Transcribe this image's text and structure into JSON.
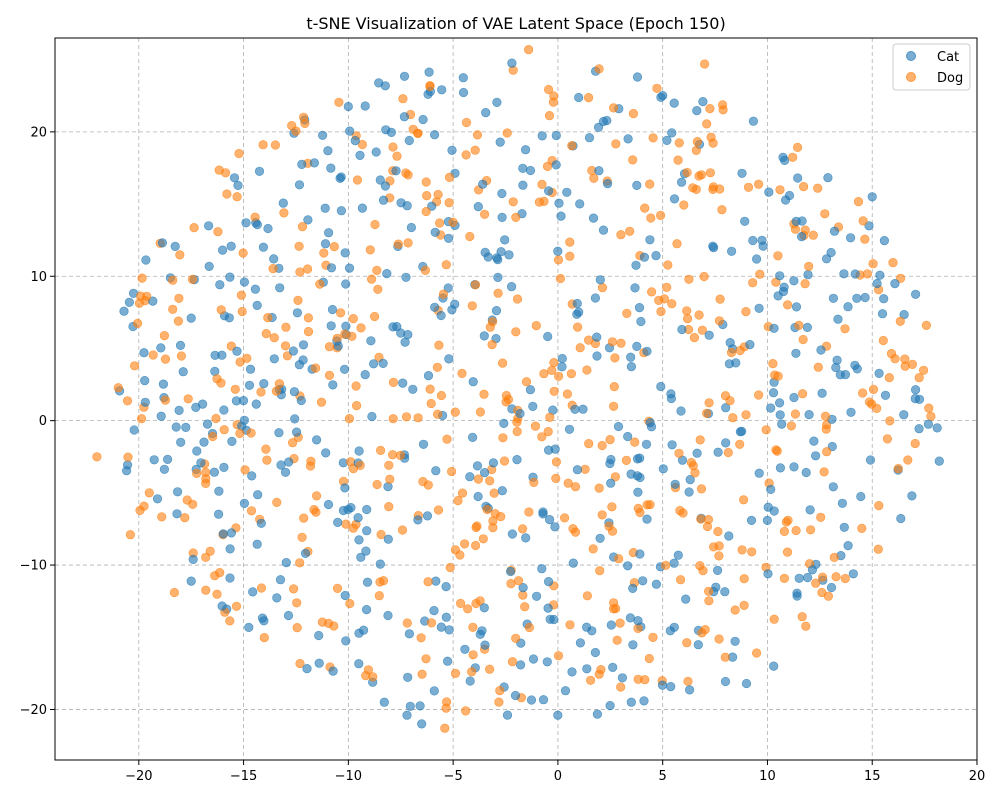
{
  "chart_data": {
    "type": "scatter",
    "title": "t-SNE Visualization of VAE Latent Space (Epoch 150)",
    "xlabel": "",
    "ylabel": "",
    "xlim": [
      -24.0,
      20.0
    ],
    "ylim": [
      -23.5,
      26.5
    ],
    "xticks": [
      -20,
      -15,
      -10,
      -5,
      0,
      5,
      10,
      15,
      20
    ],
    "yticks": [
      -20,
      -10,
      0,
      10,
      20
    ],
    "grid": true,
    "legend": "top-right",
    "point_count_per_series": 600,
    "seed": 150,
    "series": [
      {
        "name": "Cat",
        "color": "#1f77b4",
        "extreme_points": [
          [
            18.2,
            -2.8
          ],
          [
            18.1,
            -0.5
          ],
          [
            -17.5,
            7.1
          ],
          [
            -18.0,
            -1.5
          ],
          [
            3.5,
            -19.5
          ],
          [
            -6.5,
            -21.0
          ],
          [
            -7.2,
            -20.4
          ],
          [
            1.8,
            24.2
          ],
          [
            3.8,
            23.8
          ],
          [
            15.0,
            15.5
          ],
          [
            9.0,
            -18.2
          ],
          [
            10.3,
            -17.0
          ]
        ]
      },
      {
        "name": "Dog",
        "color": "#ff7f0e",
        "extreme_points": [
          [
            -22.0,
            -2.5
          ],
          [
            -20.4,
            -7.9
          ],
          [
            -20.2,
            3.8
          ],
          [
            -19.5,
            -5.0
          ],
          [
            -18.3,
            -11.9
          ],
          [
            -5.4,
            -21.3
          ],
          [
            -4.4,
            -20.1
          ],
          [
            -1.4,
            25.7
          ],
          [
            7.0,
            24.7
          ],
          [
            17.8,
            0.3
          ],
          [
            12.4,
            16.1
          ],
          [
            11.8,
            13.2
          ]
        ]
      }
    ]
  }
}
